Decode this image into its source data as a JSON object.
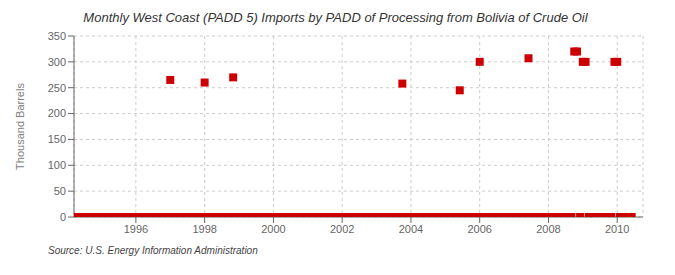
{
  "chart_data": {
    "type": "scatter",
    "title": "Monthly West Coast (PADD 5) Imports by PADD of Processing from Bolivia of Crude Oil",
    "ylabel": "Thousand Barrels",
    "annotations": [
      "Source: U.S. Energy Information Administration"
    ],
    "color": "#cc0000",
    "marker": "square",
    "grid": true,
    "xlim": [
      1994.2,
      2010.75
    ],
    "ylim": [
      0,
      350
    ],
    "xticks": [
      1996,
      1998,
      2000,
      2002,
      2004,
      2006,
      2008,
      2010
    ],
    "yticks": [
      0,
      50,
      100,
      150,
      200,
      250,
      300,
      350
    ],
    "x": [
      1994.25,
      1994.33,
      1994.42,
      1994.5,
      1994.58,
      1994.67,
      1994.75,
      1994.83,
      1994.92,
      1995.0,
      1995.08,
      1995.17,
      1995.25,
      1995.33,
      1995.42,
      1995.5,
      1995.58,
      1995.67,
      1995.75,
      1995.83,
      1995.92,
      1996.0,
      1996.08,
      1996.17,
      1996.25,
      1996.33,
      1996.42,
      1996.5,
      1996.58,
      1996.67,
      1996.75,
      1996.83,
      1996.92,
      1997.0,
      1997.08,
      1997.17,
      1997.25,
      1997.33,
      1997.42,
      1997.5,
      1997.58,
      1997.67,
      1997.75,
      1997.83,
      1997.92,
      1998.0,
      1998.08,
      1998.17,
      1998.25,
      1998.33,
      1998.42,
      1998.5,
      1998.58,
      1998.67,
      1998.75,
      1998.83,
      1998.92,
      1999.0,
      1999.08,
      1999.17,
      1999.25,
      1999.33,
      1999.42,
      1999.5,
      1999.58,
      1999.67,
      1999.75,
      1999.83,
      1999.92,
      2000.0,
      2000.08,
      2000.17,
      2000.25,
      2000.33,
      2000.42,
      2000.5,
      2000.58,
      2000.67,
      2000.75,
      2000.83,
      2000.92,
      2001.0,
      2001.08,
      2001.17,
      2001.25,
      2001.33,
      2001.42,
      2001.5,
      2001.58,
      2001.67,
      2001.75,
      2001.83,
      2001.92,
      2002.0,
      2002.08,
      2002.17,
      2002.25,
      2002.33,
      2002.42,
      2002.5,
      2002.58,
      2002.67,
      2002.75,
      2002.83,
      2002.92,
      2003.0,
      2003.08,
      2003.17,
      2003.25,
      2003.33,
      2003.42,
      2003.5,
      2003.58,
      2003.67,
      2003.75,
      2003.83,
      2003.92,
      2004.0,
      2004.08,
      2004.17,
      2004.25,
      2004.33,
      2004.42,
      2004.5,
      2004.58,
      2004.67,
      2004.75,
      2004.83,
      2004.92,
      2005.0,
      2005.08,
      2005.17,
      2005.25,
      2005.33,
      2005.42,
      2005.5,
      2005.58,
      2005.67,
      2005.75,
      2005.83,
      2005.92,
      2006.0,
      2006.08,
      2006.17,
      2006.25,
      2006.33,
      2006.42,
      2006.5,
      2006.58,
      2006.67,
      2006.75,
      2006.83,
      2006.92,
      2007.0,
      2007.08,
      2007.17,
      2007.25,
      2007.33,
      2007.42,
      2007.5,
      2007.58,
      2007.67,
      2007.75,
      2007.83,
      2007.92,
      2008.0,
      2008.08,
      2008.17,
      2008.25,
      2008.33,
      2008.42,
      2008.5,
      2008.58,
      2008.67,
      2008.75,
      2008.83,
      2008.92,
      2009.0,
      2009.08,
      2009.17,
      2009.25,
      2009.33,
      2009.42,
      2009.5,
      2009.58,
      2009.67,
      2009.75,
      2009.83,
      2009.92,
      2010.0,
      2010.08,
      2010.17,
      2010.25,
      2010.33,
      2010.42
    ],
    "values": [
      0,
      0,
      0,
      0,
      0,
      0,
      0,
      0,
      0,
      0,
      0,
      0,
      0,
      0,
      0,
      0,
      0,
      0,
      0,
      0,
      0,
      0,
      0,
      0,
      0,
      0,
      0,
      0,
      0,
      0,
      0,
      0,
      0,
      265,
      0,
      0,
      0,
      0,
      0,
      0,
      0,
      0,
      0,
      0,
      0,
      260,
      0,
      0,
      0,
      0,
      0,
      0,
      0,
      0,
      0,
      270,
      0,
      0,
      0,
      0,
      0,
      0,
      0,
      0,
      0,
      0,
      0,
      0,
      0,
      0,
      0,
      0,
      0,
      0,
      0,
      0,
      0,
      0,
      0,
      0,
      0,
      0,
      0,
      0,
      0,
      0,
      0,
      0,
      0,
      0,
      0,
      0,
      0,
      0,
      0,
      0,
      0,
      0,
      0,
      0,
      0,
      0,
      0,
      0,
      0,
      0,
      0,
      0,
      0,
      0,
      0,
      0,
      0,
      0,
      258,
      0,
      0,
      0,
      0,
      0,
      0,
      0,
      0,
      0,
      0,
      0,
      0,
      0,
      0,
      0,
      0,
      0,
      0,
      0,
      245,
      0,
      0,
      0,
      0,
      0,
      0,
      300,
      0,
      0,
      0,
      0,
      0,
      0,
      0,
      0,
      0,
      0,
      0,
      0,
      0,
      0,
      0,
      0,
      307,
      0,
      0,
      0,
      0,
      0,
      0,
      0,
      0,
      0,
      0,
      0,
      0,
      0,
      0,
      0,
      320,
      320,
      0,
      300,
      300,
      0,
      0,
      0,
      0,
      0,
      0,
      0,
      0,
      0,
      300,
      300,
      0,
      0,
      0,
      0,
      0
    ]
  }
}
